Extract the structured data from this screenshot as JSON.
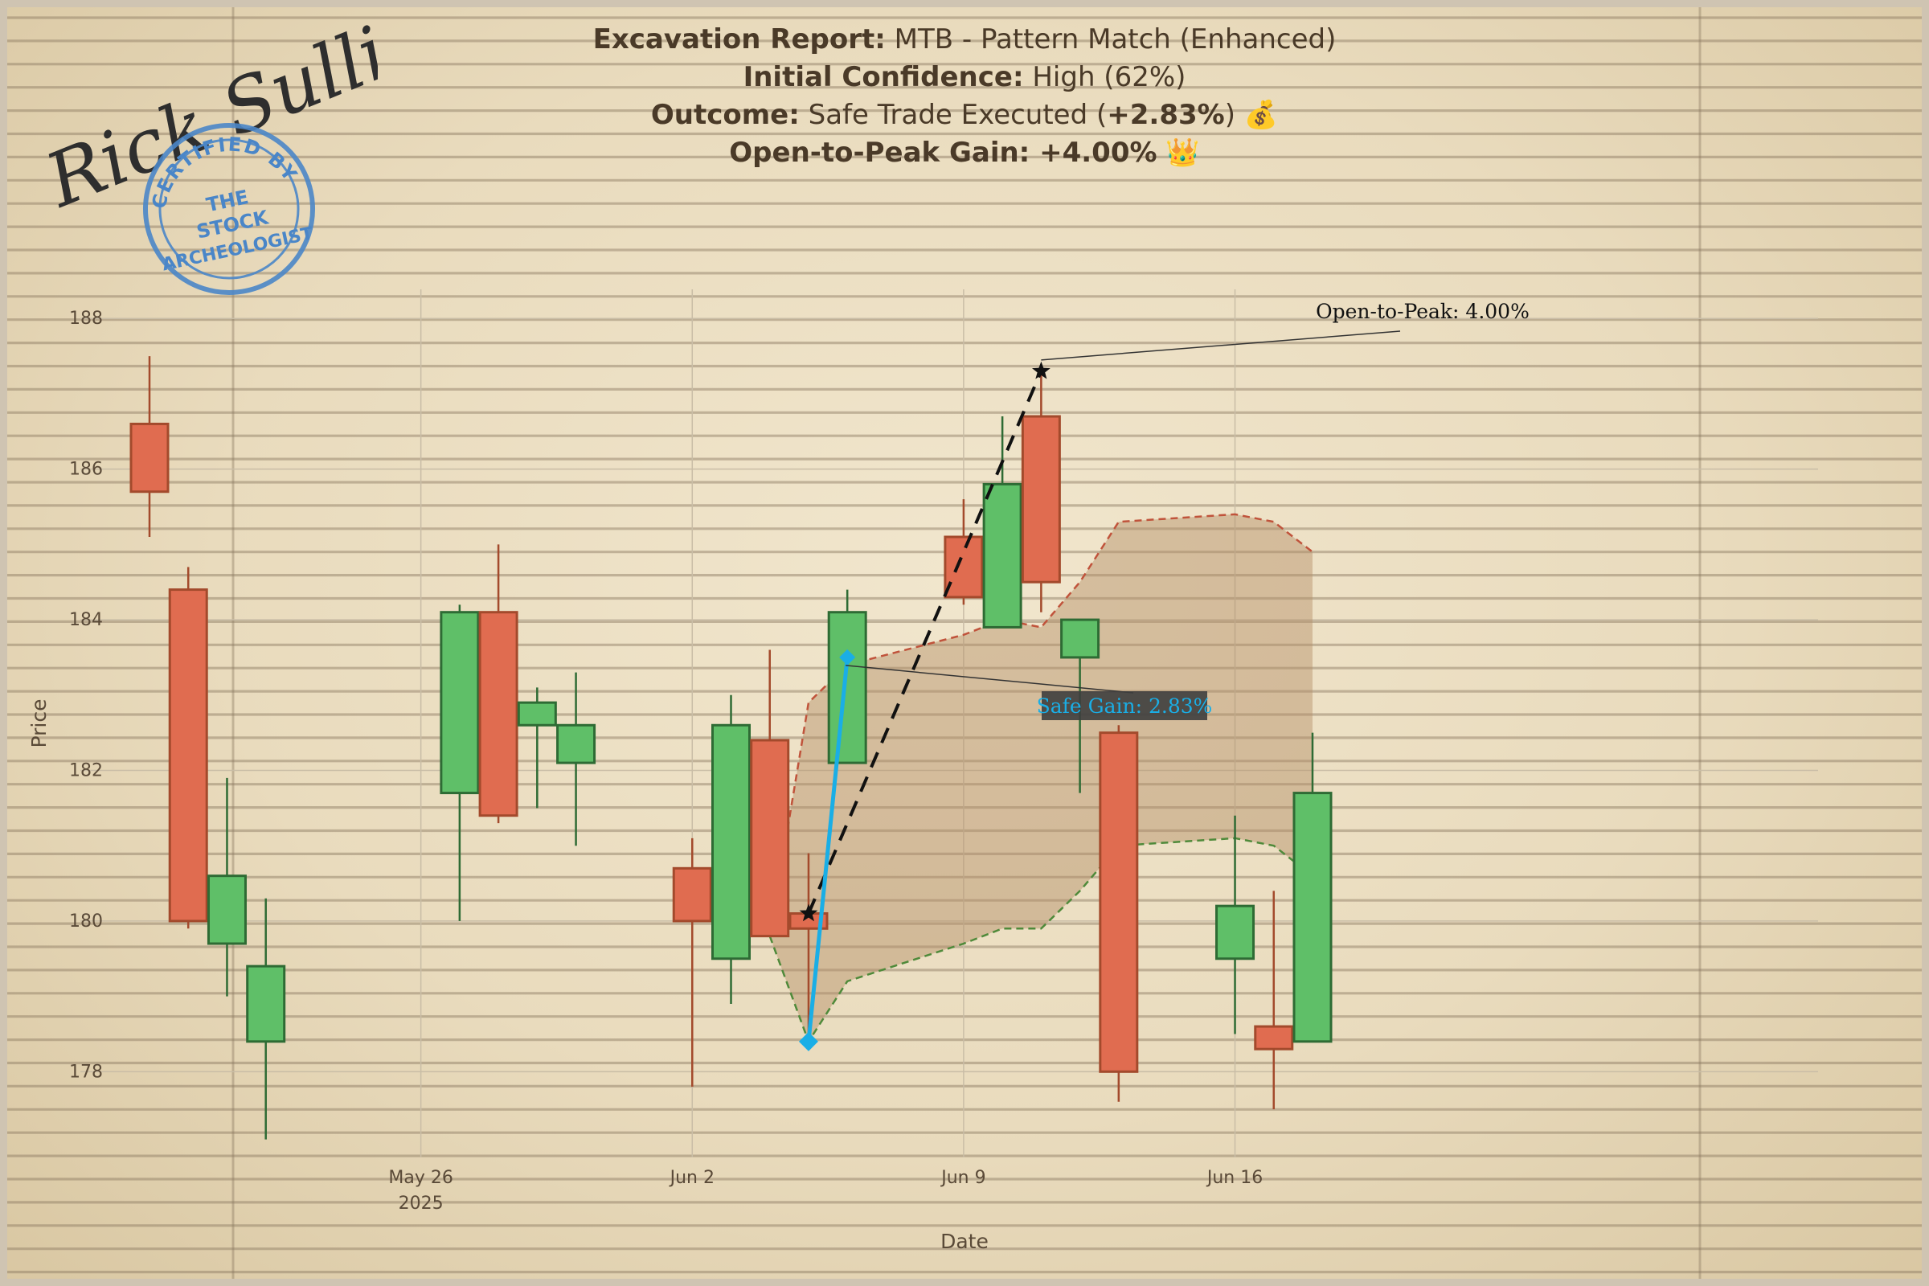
{
  "title_block": {
    "line1_label": "Excavation Report:",
    "line1_value": "MTB - Pattern Match (Enhanced)",
    "line2_label": "Initial Confidence:",
    "line2_value": "High (62%)",
    "line3_label": "Outcome:",
    "line3_value_pre": "Safe Trade Executed (",
    "line3_value_bold": "+2.83%",
    "line3_value_post": ")",
    "line3_emoji": "💰",
    "line4_label": "Open-to-Peak Gain: +4.00%",
    "line4_emoji": "👑"
  },
  "signature": {
    "text": "Rick Sullivan",
    "stamp_ring_text": "CERTIFIED BY",
    "stamp_center_lines": [
      "THE",
      "STOCK",
      "ARCHEOLOGIST"
    ]
  },
  "colors": {
    "up": "#5fbf68",
    "up_edge": "#2e6b34",
    "down": "#e06c50",
    "down_edge": "#a34a2c",
    "band_fill": "#b38d66",
    "band_upper": "#c0533b",
    "band_lower": "#4f8a3a",
    "safe": "#1aaee6",
    "ink": "#111111",
    "stamp": "#4a86c8"
  },
  "chart_data": {
    "type": "candlestick",
    "xlabel": "Date",
    "ylabel": "Price",
    "ylim": [
      176.2,
      188.6
    ],
    "y_ticks": [
      178,
      180,
      182,
      184,
      186,
      188
    ],
    "x_ticks": [
      {
        "date": "2025-05-26",
        "label": "May 26",
        "sublabel": "2025"
      },
      {
        "date": "2025-06-02",
        "label": "Jun 2",
        "sublabel": ""
      },
      {
        "date": "2025-06-09",
        "label": "Jun 9",
        "sublabel": ""
      },
      {
        "date": "2025-06-16",
        "label": "Jun 16",
        "sublabel": ""
      }
    ],
    "candles": [
      {
        "date": "2025-05-19",
        "open": 186.6,
        "high": 187.5,
        "low": 185.1,
        "close": 185.7
      },
      {
        "date": "2025-05-20",
        "open": 184.4,
        "high": 184.7,
        "low": 179.9,
        "close": 180.0
      },
      {
        "date": "2025-05-21",
        "open": 179.7,
        "high": 181.9,
        "low": 179.0,
        "close": 180.6
      },
      {
        "date": "2025-05-22",
        "open": 178.4,
        "high": 180.3,
        "low": 177.1,
        "close": 179.4
      },
      {
        "date": "2025-05-27",
        "open": 181.7,
        "high": 184.2,
        "low": 180.0,
        "close": 184.1
      },
      {
        "date": "2025-05-28",
        "open": 184.1,
        "high": 185.0,
        "low": 181.3,
        "close": 181.4
      },
      {
        "date": "2025-05-29",
        "open": 182.6,
        "high": 183.1,
        "low": 181.5,
        "close": 182.9
      },
      {
        "date": "2025-05-30",
        "open": 182.1,
        "high": 183.3,
        "low": 181.0,
        "close": 182.6
      },
      {
        "date": "2025-06-02",
        "open": 180.7,
        "high": 181.1,
        "low": 177.8,
        "close": 180.0
      },
      {
        "date": "2025-06-03",
        "open": 179.5,
        "high": 183.0,
        "low": 178.9,
        "close": 182.6
      },
      {
        "date": "2025-06-04",
        "open": 182.4,
        "high": 183.6,
        "low": 179.8,
        "close": 179.8
      },
      {
        "date": "2025-06-05",
        "open": 180.1,
        "high": 180.9,
        "low": 178.4,
        "close": 179.9
      },
      {
        "date": "2025-06-06",
        "open": 182.1,
        "high": 184.4,
        "low": 182.1,
        "close": 184.1
      },
      {
        "date": "2025-06-09",
        "open": 185.1,
        "high": 185.6,
        "low": 184.2,
        "close": 184.3
      },
      {
        "date": "2025-06-10",
        "open": 183.9,
        "high": 186.7,
        "low": 183.9,
        "close": 185.8
      },
      {
        "date": "2025-06-11",
        "open": 186.7,
        "high": 187.3,
        "low": 184.1,
        "close": 184.5
      },
      {
        "date": "2025-06-12",
        "open": 183.5,
        "high": 184.0,
        "low": 181.7,
        "close": 184.0
      },
      {
        "date": "2025-06-13",
        "open": 182.5,
        "high": 182.6,
        "low": 177.6,
        "close": 178.0
      },
      {
        "date": "2025-06-16",
        "open": 179.5,
        "high": 181.4,
        "low": 178.5,
        "close": 180.2
      },
      {
        "date": "2025-06-17",
        "open": 178.6,
        "high": 180.4,
        "low": 177.5,
        "close": 178.3
      },
      {
        "date": "2025-06-18",
        "open": 178.4,
        "high": 182.5,
        "low": 178.4,
        "close": 181.7
      }
    ],
    "projection_band": {
      "dates": [
        "2025-06-04",
        "2025-06-05",
        "2025-06-06",
        "2025-06-09",
        "2025-06-10",
        "2025-06-11",
        "2025-06-12",
        "2025-06-13",
        "2025-06-16",
        "2025-06-17",
        "2025-06-18"
      ],
      "upper": [
        179.8,
        182.9,
        183.4,
        183.8,
        184.0,
        183.9,
        184.5,
        185.3,
        185.4,
        185.3,
        184.9
      ],
      "lower": [
        179.8,
        178.4,
        179.2,
        179.7,
        179.9,
        179.9,
        180.4,
        181.0,
        181.1,
        181.0,
        180.6
      ]
    },
    "open_to_peak": {
      "start_date": "2025-06-05",
      "start_price": 180.1,
      "end_date": "2025-06-11",
      "end_price": 187.3,
      "label": "Open-to-Peak: 4.00%"
    },
    "safe_trade": {
      "start_date": "2025-06-05",
      "start_price": 178.4,
      "end_date": "2025-06-06",
      "end_price": 183.5,
      "label": "Safe Gain: 2.83%"
    }
  }
}
